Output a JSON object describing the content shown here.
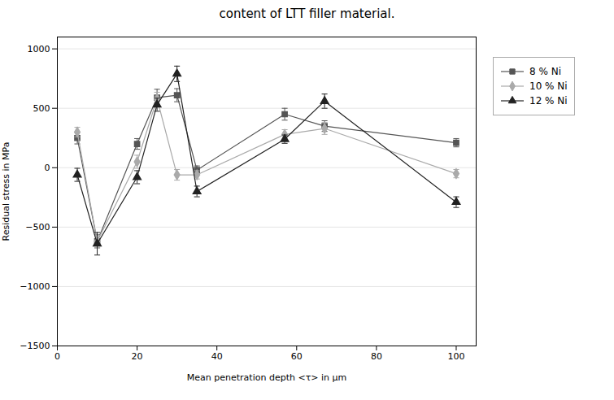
{
  "chart_data": {
    "type": "line",
    "title": "content of LTT filler material.",
    "xlabel": "Mean penetration depth <τ> in μm",
    "ylabel": "Residual stress in MPa",
    "xlim": [
      0,
      105
    ],
    "ylim": [
      -1500,
      1100
    ],
    "xticks": [
      0,
      20,
      40,
      60,
      80,
      100
    ],
    "yticks": [
      -1500,
      -1000,
      -500,
      0,
      500,
      1000
    ],
    "grid": "y",
    "legend": "right",
    "x": [
      5,
      10,
      20,
      25,
      30,
      35,
      57,
      67,
      100
    ],
    "series": [
      {
        "name": "8 % Ni",
        "color": "#555555",
        "marker": "square",
        "values": [
          250,
          -620,
          200,
          590,
          610,
          -20,
          450,
          350,
          210
        ],
        "yerr": [
          50,
          55,
          45,
          70,
          55,
          35,
          50,
          45,
          35
        ]
      },
      {
        "name": "10 % Ni",
        "color": "#aaaaaa",
        "marker": "diamond",
        "values": [
          300,
          -620,
          50,
          580,
          -60,
          -60,
          280,
          330,
          -50
        ],
        "yerr": [
          40,
          50,
          55,
          55,
          45,
          35,
          40,
          50,
          35
        ]
      },
      {
        "name": "12 % Ni",
        "color": "#222222",
        "marker": "triangle",
        "values": [
          -60,
          -640,
          -80,
          530,
          790,
          -200,
          240,
          560,
          -290
        ],
        "yerr": [
          55,
          95,
          55,
          55,
          65,
          45,
          35,
          60,
          45
        ]
      }
    ]
  }
}
